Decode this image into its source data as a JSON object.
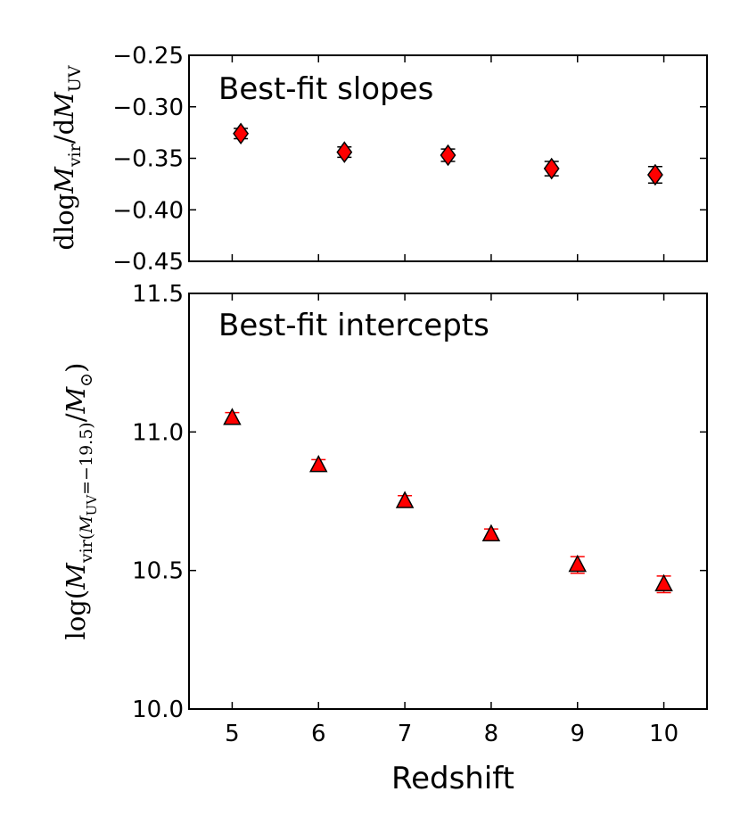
{
  "chart_data": [
    {
      "type": "scatter",
      "title": "",
      "annotation": "Best-fit slopes",
      "xlabel": "",
      "ylabel": "dlogM_vir/dM_UV",
      "xlim": [
        4.5,
        10.5
      ],
      "ylim": [
        -0.45,
        -0.25
      ],
      "yticks": [
        -0.45,
        -0.4,
        -0.35,
        -0.3,
        -0.25
      ],
      "ytick_labels": [
        "−0.45",
        "−0.40",
        "−0.35",
        "−0.30",
        "−0.25"
      ],
      "marker": "diamond",
      "marker_color": "#ff0000",
      "errorbar_color": "#000000",
      "series": [
        {
          "x": [
            5.1,
            6.3,
            7.5,
            8.7,
            9.9
          ],
          "y": [
            -0.326,
            -0.344,
            -0.347,
            -0.36,
            -0.366
          ],
          "yerr": [
            0.005,
            0.005,
            0.006,
            0.007,
            0.008
          ]
        }
      ]
    },
    {
      "type": "scatter",
      "title": "",
      "annotation": "Best-fit intercepts",
      "xlabel": "Redshift",
      "ylabel": "log(M_vir(M_UV=−19.5)/M_⊙)",
      "xlim": [
        4.5,
        10.5
      ],
      "ylim": [
        10.0,
        11.5
      ],
      "xticks": [
        5,
        6,
        7,
        8,
        9,
        10
      ],
      "xtick_labels": [
        "5",
        "6",
        "7",
        "8",
        "9",
        "10"
      ],
      "yticks": [
        10.0,
        10.5,
        11.0,
        11.5
      ],
      "ytick_labels": [
        "10.0",
        "10.5",
        "11.0",
        "11.5"
      ],
      "marker": "triangle",
      "marker_color": "#ff0000",
      "errorbar_color": "#ff0000",
      "series": [
        {
          "x": [
            5,
            6,
            7,
            8,
            9,
            10
          ],
          "y": [
            11.05,
            10.88,
            10.75,
            10.63,
            10.52,
            10.45
          ],
          "yerr": [
            0.02,
            0.02,
            0.02,
            0.02,
            0.03,
            0.03
          ]
        }
      ]
    }
  ]
}
